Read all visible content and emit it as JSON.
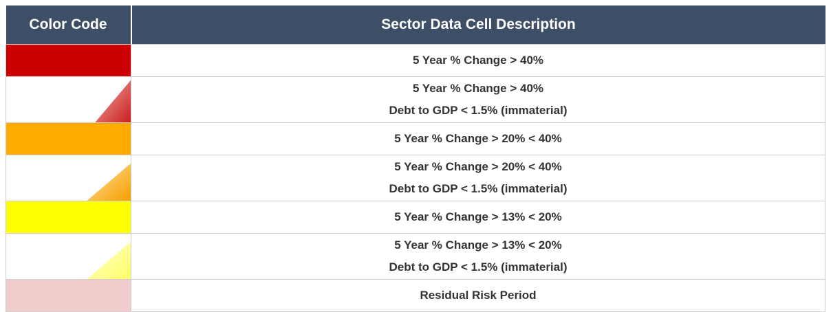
{
  "table": {
    "header": [
      "Color Code",
      "Sector Data Cell Description"
    ],
    "rows": [
      {
        "lines": [
          "5 Year % Change > 40%"
        ]
      },
      {
        "lines": [
          "5 Year % Change > 40%",
          "Debt to GDP < 1.5% (immaterial)"
        ]
      },
      {
        "lines": [
          "5 Year % Change > 20% < 40%"
        ]
      },
      {
        "lines": [
          "5 Year % Change > 20% < 40%",
          "Debt to GDP < 1.5% (immaterial)"
        ]
      },
      {
        "lines": [
          "5 Year % Change > 13% < 20%"
        ]
      },
      {
        "lines": [
          "5 Year % Change > 13% < 20%",
          "Debt to GDP < 1.5% (immaterial)"
        ]
      },
      {
        "lines": [
          "Residual Risk Period"
        ]
      }
    ]
  }
}
